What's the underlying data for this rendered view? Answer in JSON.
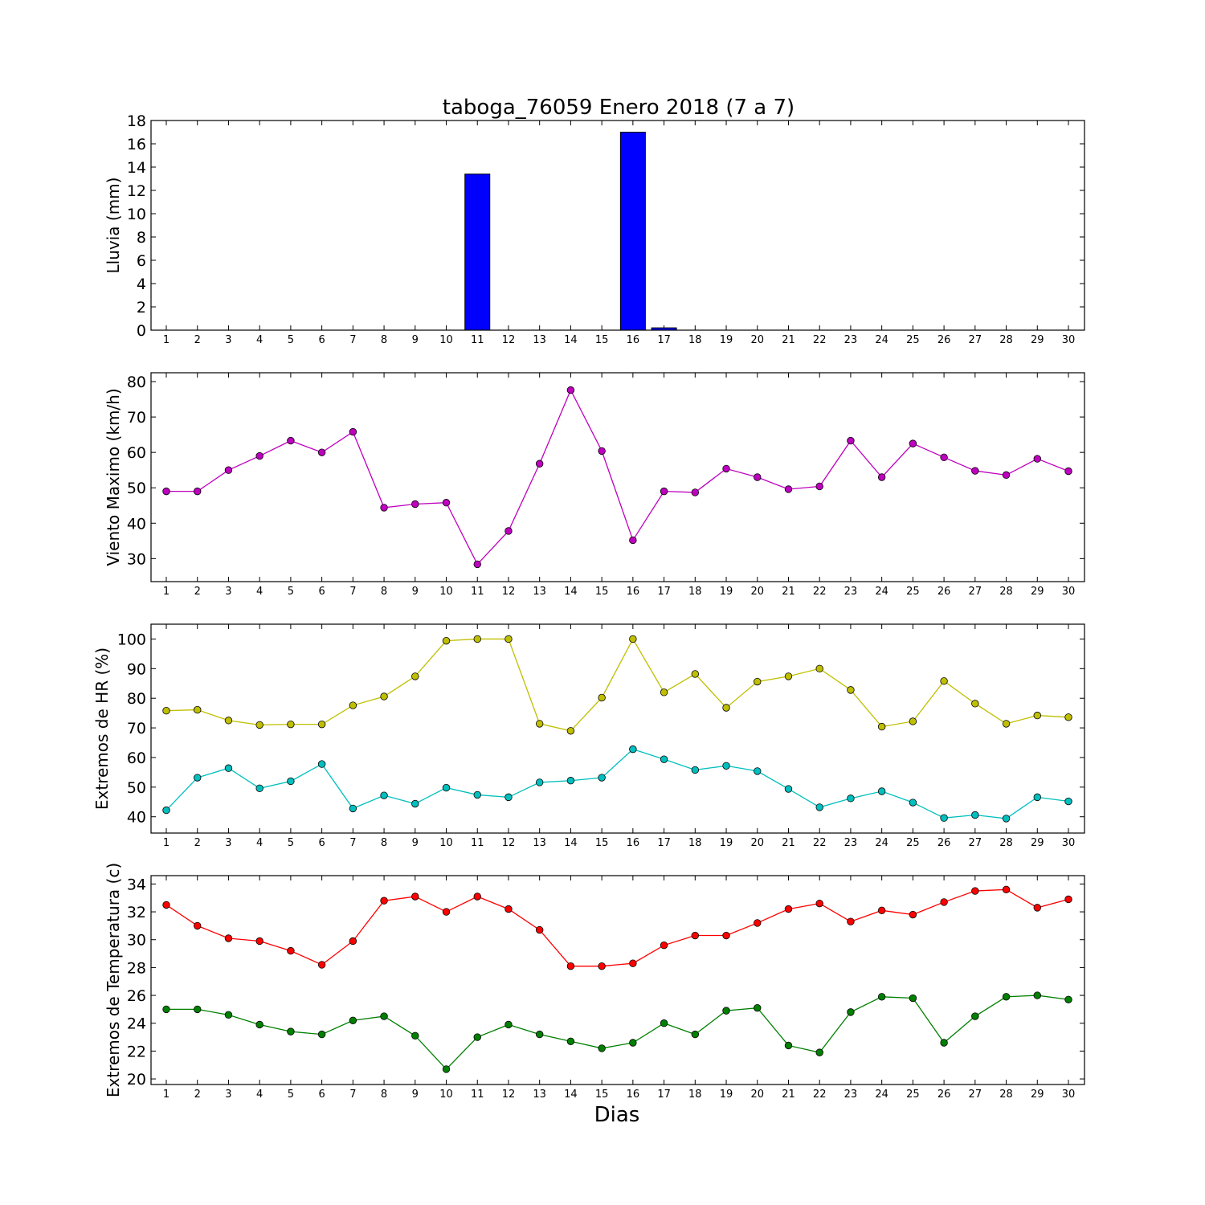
{
  "figure": {
    "title": "taboga_76059 Enero 2018  (7 a 7)",
    "xlabel": "Dias"
  },
  "chart_data": [
    {
      "type": "bar",
      "ylabel": "Lluvia (mm)",
      "ylim": [
        0,
        18
      ],
      "yticks": [
        0,
        2,
        4,
        6,
        8,
        10,
        12,
        14,
        16,
        18
      ],
      "x": [
        1,
        2,
        3,
        4,
        5,
        6,
        7,
        8,
        9,
        10,
        11,
        12,
        13,
        14,
        15,
        16,
        17,
        18,
        19,
        20,
        21,
        22,
        23,
        24,
        25,
        26,
        27,
        28,
        29,
        30
      ],
      "series": [
        {
          "color": "#0000ff",
          "values": [
            0,
            0,
            0,
            0,
            0,
            0,
            0,
            0,
            0,
            0,
            13.4,
            0,
            0,
            0,
            0,
            17.0,
            0.2,
            0,
            0,
            0,
            0,
            0,
            0,
            0,
            0,
            0,
            0,
            0,
            0,
            0
          ]
        }
      ]
    },
    {
      "type": "line",
      "ylabel": "Viento Maximo (km/h)",
      "ylim": [
        23.5,
        82.5
      ],
      "yticks": [
        30,
        40,
        50,
        60,
        70,
        80
      ],
      "x": [
        1,
        2,
        3,
        4,
        5,
        6,
        7,
        8,
        9,
        10,
        11,
        12,
        13,
        14,
        15,
        16,
        17,
        18,
        19,
        20,
        21,
        22,
        23,
        24,
        25,
        26,
        27,
        28,
        29,
        30
      ],
      "series": [
        {
          "color": "#bf00bf",
          "values": [
            49,
            49,
            55,
            59,
            63.3,
            60,
            65.8,
            44.4,
            45.4,
            45.8,
            28.4,
            37.8,
            56.8,
            77.6,
            60.4,
            35.2,
            49,
            48.7,
            55.4,
            53,
            49.6,
            50.4,
            63.3,
            53,
            62.5,
            58.6,
            54.8,
            53.6,
            58.2,
            54.7
          ]
        }
      ]
    },
    {
      "type": "line",
      "ylabel": "Extremos de HR (%)",
      "ylim": [
        34.5,
        105
      ],
      "yticks": [
        40,
        50,
        60,
        70,
        80,
        90,
        100
      ],
      "x": [
        1,
        2,
        3,
        4,
        5,
        6,
        7,
        8,
        9,
        10,
        11,
        12,
        13,
        14,
        15,
        16,
        17,
        18,
        19,
        20,
        21,
        22,
        23,
        24,
        25,
        26,
        27,
        28,
        29,
        30
      ],
      "series": [
        {
          "color": "#bfbf00",
          "values": [
            75.8,
            76.1,
            72.5,
            71,
            71.2,
            71.2,
            77.6,
            80.6,
            87.4,
            99.4,
            100,
            100,
            71.4,
            69,
            80.2,
            100,
            82,
            88.2,
            76.8,
            85.6,
            87.4,
            90,
            82.8,
            70.4,
            72.2,
            85.8,
            78.2,
            71.4,
            74.2,
            73.6
          ]
        },
        {
          "color": "#00bfbf",
          "values": [
            42.2,
            53.2,
            56.4,
            49.6,
            52,
            57.8,
            42.8,
            47.2,
            44.4,
            49.8,
            47.4,
            46.6,
            51.6,
            52.2,
            53.2,
            62.8,
            59.4,
            55.8,
            57.2,
            55.4,
            49.4,
            43.2,
            46.2,
            48.6,
            44.8,
            39.6,
            40.6,
            39.4,
            46.6,
            45.2
          ]
        }
      ]
    },
    {
      "type": "line",
      "ylabel": "Extremos de Temperatura (c)",
      "ylim": [
        19.6,
        34.6
      ],
      "yticks": [
        20,
        22,
        24,
        26,
        28,
        30,
        32,
        34
      ],
      "x": [
        1,
        2,
        3,
        4,
        5,
        6,
        7,
        8,
        9,
        10,
        11,
        12,
        13,
        14,
        15,
        16,
        17,
        18,
        19,
        20,
        21,
        22,
        23,
        24,
        25,
        26,
        27,
        28,
        29,
        30
      ],
      "series": [
        {
          "color": "#ff0000",
          "values": [
            32.5,
            31,
            30.1,
            29.9,
            29.2,
            28.2,
            29.9,
            32.8,
            33.1,
            32,
            33.1,
            32.2,
            30.7,
            28.1,
            28.1,
            28.3,
            29.6,
            30.3,
            30.3,
            31.2,
            32.2,
            32.6,
            31.3,
            32.1,
            31.8,
            32.7,
            33.5,
            33.6,
            32.3,
            32.9
          ]
        },
        {
          "color": "#008000",
          "values": [
            25,
            25,
            24.6,
            23.9,
            23.4,
            23.2,
            24.2,
            24.5,
            23.1,
            20.7,
            23,
            23.9,
            23.2,
            22.7,
            22.2,
            22.6,
            24,
            23.2,
            24.9,
            25.1,
            22.4,
            21.9,
            24.8,
            25.9,
            25.8,
            22.6,
            24.5,
            25.9,
            26,
            25.7
          ]
        }
      ]
    }
  ]
}
